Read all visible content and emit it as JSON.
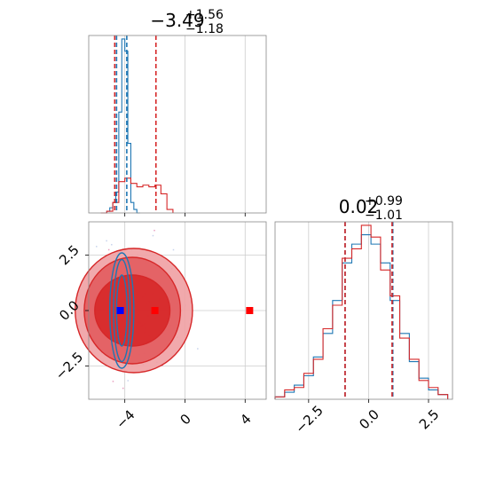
{
  "chart_data": {
    "type": "corner",
    "colors": {
      "series_a": "#1f77b4",
      "series_b": "#d62728",
      "marker_blue": "#0000ff",
      "marker_red": "#ff0000",
      "grid": "#cccccc"
    },
    "panels": [
      {
        "id": "hist1d-param1",
        "type": "histogram",
        "title": {
          "main": "−3.49",
          "sup": "+1.56",
          "sub": "−1.18"
        },
        "xlim": [
          -6.4,
          5.4
        ],
        "x_ticks": [
          -4,
          0,
          4
        ],
        "quantile_lines": {
          "series_a": [
            -4.55,
            -3.87
          ],
          "series_b": [
            -4.67,
            -1.93
          ]
        },
        "series": [
          {
            "key": "series_a",
            "bin_edges": [
              -5.4,
              -5.2,
              -5.0,
              -4.8,
              -4.6,
              -4.4,
              -4.2,
              -4.0,
              -3.8,
              -3.6,
              -3.4,
              -3.2,
              -3.0
            ],
            "counts": [
              0,
              1,
              3,
              6,
              12,
              58,
              100,
              93,
              40,
              6,
              2,
              0
            ]
          },
          {
            "key": "series_b",
            "bin_edges": [
              -5.6,
              -5.2,
              -4.8,
              -4.4,
              -4.0,
              -3.6,
              -3.2,
              -2.8,
              -2.4,
              -2.0,
              -1.6,
              -1.2,
              -0.8
            ],
            "counts": [
              0,
              1,
              6,
              18,
              20,
              17,
              15,
              16,
              15,
              16,
              11,
              2
            ]
          }
        ]
      },
      {
        "id": "scatter2d",
        "type": "contour",
        "xlim": [
          -6.4,
          5.4
        ],
        "ylim": [
          -4.0,
          4.0
        ],
        "x_ticks": [
          -4,
          0,
          4
        ],
        "y_ticks": [
          -2.5,
          0.0,
          2.5
        ],
        "x_tick_labels": [
          "−4",
          "0",
          "4"
        ],
        "y_tick_labels": [
          "−2.5",
          "0.0",
          "2.5"
        ],
        "series_b_levels": [
          {
            "cx": -3.5,
            "cy": 0.0,
            "rx": 2.5,
            "ry": 1.6
          },
          {
            "cx": -3.5,
            "cy": 0.0,
            "rx": 3.2,
            "ry": 2.4
          },
          {
            "cx": -3.4,
            "cy": 0.0,
            "rx": 3.9,
            "ry": 2.8
          }
        ],
        "series_a_levels": [
          {
            "cx": -4.2,
            "cy": 0.0,
            "rx": 0.35,
            "ry": 1.6
          },
          {
            "cx": -4.2,
            "cy": 0.0,
            "rx": 0.55,
            "ry": 2.3
          },
          {
            "cx": -4.2,
            "cy": 0.0,
            "rx": 0.8,
            "ry": 2.6
          }
        ],
        "markers": [
          {
            "key": "marker_blue",
            "x": -4.3,
            "y": 0.0
          },
          {
            "key": "marker_red",
            "x": -2.0,
            "y": 0.0
          },
          {
            "key": "marker_red",
            "x": 4.3,
            "y": 0.0
          }
        ]
      },
      {
        "id": "hist1d-param2",
        "type": "histogram",
        "title": {
          "main": "0.02",
          "sup": "+0.99",
          "sub": "−1.01"
        },
        "xlim": [
          -3.9,
          3.5
        ],
        "x_ticks": [
          -2.5,
          0.0,
          2.5
        ],
        "x_tick_labels": [
          "−2.5",
          "0.0",
          "2.5"
        ],
        "quantile_lines": {
          "series_a": [
            -0.98,
            1.01
          ],
          "series_b": [
            -0.98,
            0.98
          ]
        },
        "series": [
          {
            "key": "series_a",
            "bin_edges": [
              -3.9,
              -3.5,
              -3.1,
              -2.7,
              -2.3,
              -1.9,
              -1.5,
              -1.1,
              -0.7,
              -0.3,
              0.1,
              0.5,
              0.9,
              1.3,
              1.7,
              2.1,
              2.5,
              2.9,
              3.3
            ],
            "counts": [
              1,
              3,
              6,
              10,
              18,
              28,
              42,
              58,
              66,
              70,
              66,
              58,
              42,
              28,
              16,
              9,
              4,
              2
            ]
          },
          {
            "key": "series_b",
            "bin_edges": [
              -3.9,
              -3.5,
              -3.1,
              -2.7,
              -2.3,
              -1.9,
              -1.5,
              -1.1,
              -0.7,
              -0.3,
              0.1,
              0.5,
              0.9,
              1.3,
              1.7,
              2.1,
              2.5,
              2.9,
              3.3
            ],
            "counts": [
              1,
              4,
              5,
              11,
              17,
              30,
              40,
              60,
              64,
              74,
              69,
              55,
              44,
              26,
              17,
              8,
              5,
              2
            ]
          }
        ]
      }
    ]
  }
}
